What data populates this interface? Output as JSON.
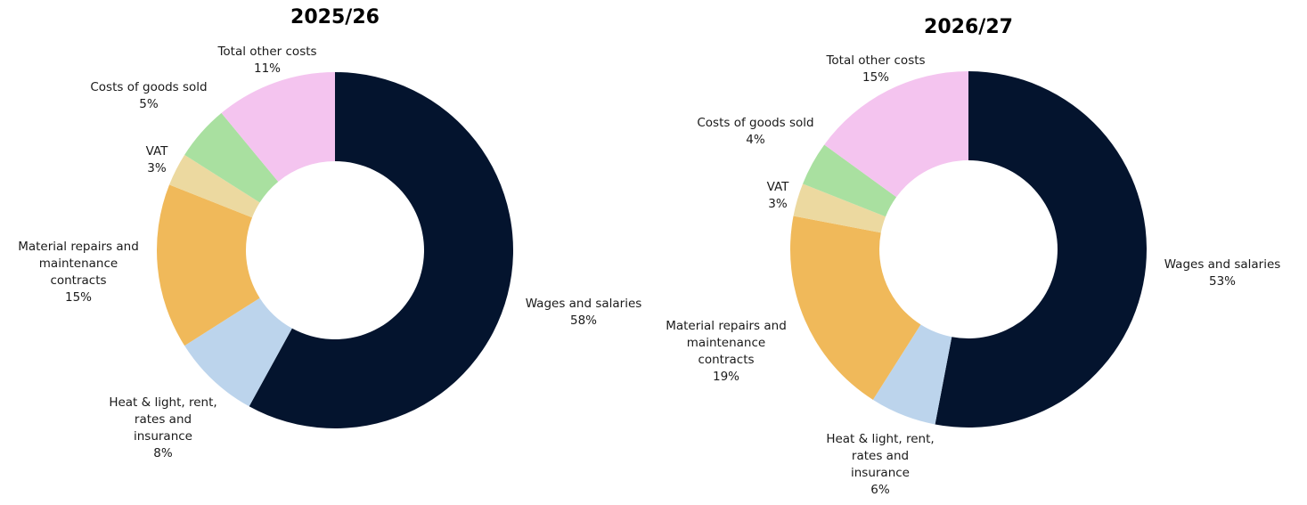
{
  "chart_data": [
    {
      "type": "donut",
      "title": "2025/26",
      "categories": [
        "Wages and salaries",
        "Heat & light, rent,\nrates and\ninsurance",
        "Material repairs and\nmaintenance\ncontracts",
        "VAT",
        "Costs of goods sold",
        "Total other costs"
      ],
      "values": [
        58,
        8,
        15,
        3,
        5,
        11
      ],
      "value_labels": [
        "58%",
        "8%",
        "15%",
        "3%",
        "5%",
        "11%"
      ],
      "colors": [
        "#04142e",
        "#bcd4ec",
        "#f0b95a",
        "#ecd9a0",
        "#a9e0a0",
        "#f4c4ef"
      ]
    },
    {
      "type": "donut",
      "title": "2026/27",
      "categories": [
        "Wages and salaries",
        "Heat & light, rent,\nrates and\ninsurance",
        "Material repairs and\nmaintenance\ncontracts",
        "VAT",
        "Costs of goods sold",
        "Total other costs"
      ],
      "values": [
        53,
        6,
        19,
        3,
        4,
        15
      ],
      "value_labels": [
        "53%",
        "6%",
        "19%",
        "3%",
        "4%",
        "15%"
      ],
      "colors": [
        "#04142e",
        "#bcd4ec",
        "#f0b95a",
        "#ecd9a0",
        "#a9e0a0",
        "#f4c4ef"
      ]
    }
  ]
}
